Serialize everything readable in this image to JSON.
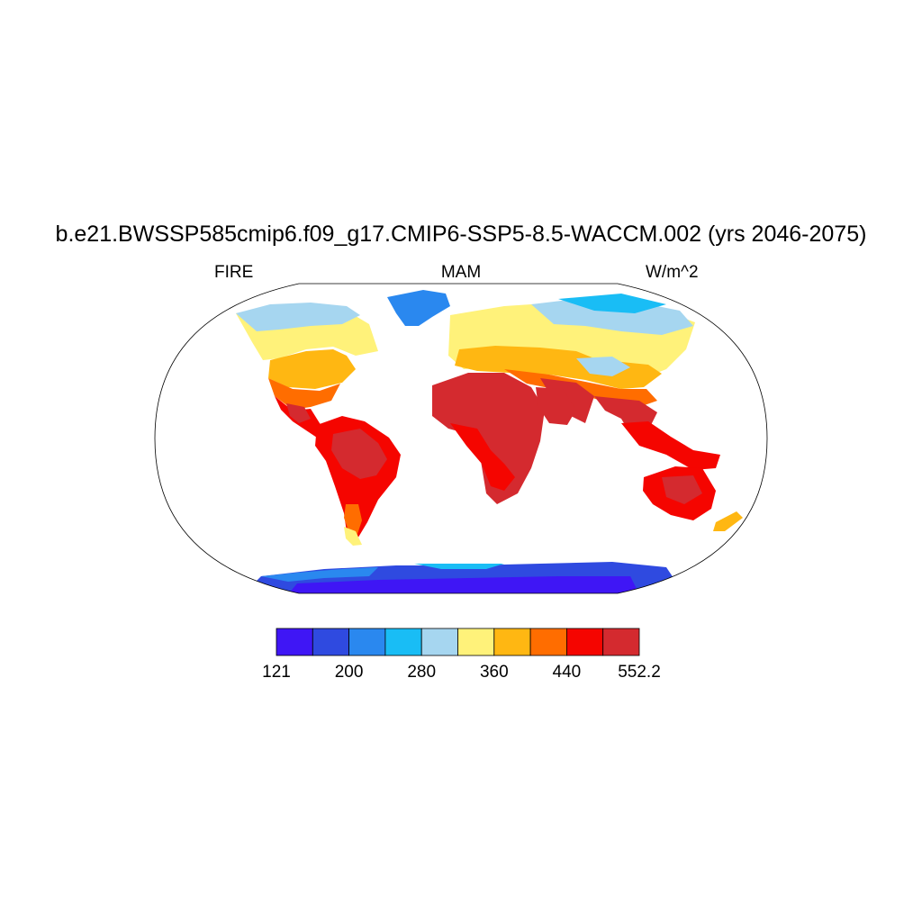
{
  "title": "b.e21.BWSSP585cmip6.f09_g17.CMIP6-SSP5-8.5-WACCM.002 (yrs 2046-2075)",
  "left_label": "FIRE",
  "center_label": "MAM",
  "right_label": "W/m^2",
  "colorbar": {
    "colors": [
      "#3f16f5",
      "#2f4ae0",
      "#2a88ef",
      "#19bdf5",
      "#a6d6f0",
      "#fff27a",
      "#ffb712",
      "#ff6d00",
      "#f50500",
      "#d42a2f"
    ],
    "tick_labels": [
      "121",
      "200",
      "280",
      "360",
      "440",
      "552.2"
    ]
  }
}
